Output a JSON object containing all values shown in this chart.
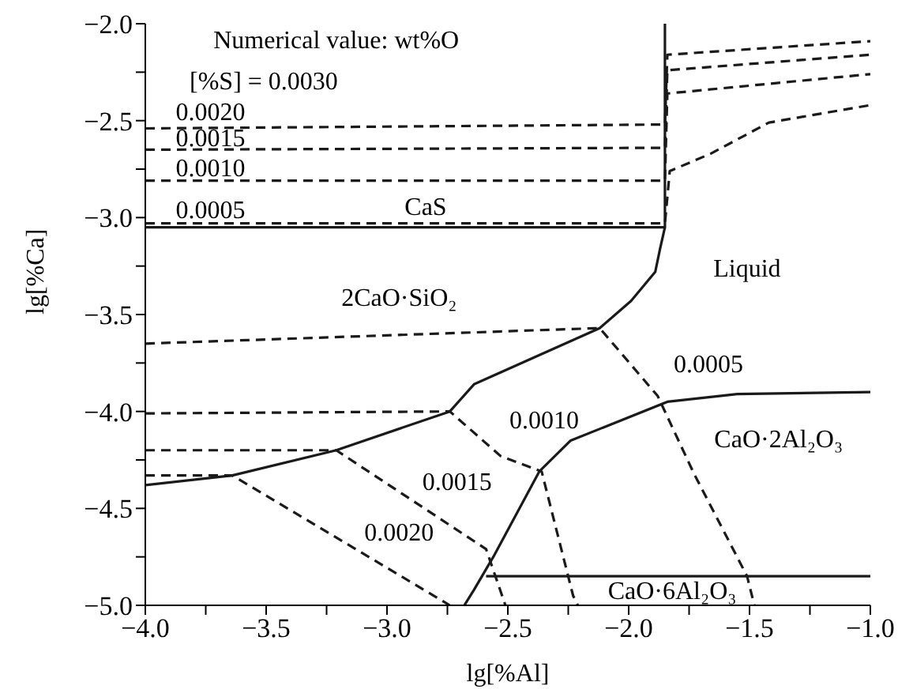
{
  "chart_data": {
    "type": "line",
    "xlabel": "lg[%Al]",
    "ylabel": "lg[%Ca]",
    "xlim": [
      -4.0,
      -1.0
    ],
    "ylim": [
      -5.0,
      -2.0
    ],
    "xticks": [
      {
        "value": -4.0,
        "label": "−4.0"
      },
      {
        "value": -3.75,
        "label": null
      },
      {
        "value": -3.5,
        "label": "−3.5"
      },
      {
        "value": -3.25,
        "label": null
      },
      {
        "value": -3.0,
        "label": "−3.0"
      },
      {
        "value": -2.75,
        "label": null
      },
      {
        "value": -2.5,
        "label": "−2.5"
      },
      {
        "value": -2.25,
        "label": null
      },
      {
        "value": -2.0,
        "label": "−2.0"
      },
      {
        "value": -1.75,
        "label": null
      },
      {
        "value": -1.5,
        "label": "−1.5"
      },
      {
        "value": -1.25,
        "label": null
      },
      {
        "value": -1.0,
        "label": "−1.0"
      }
    ],
    "yticks": [
      {
        "value": -5.0,
        "label": "−5.0"
      },
      {
        "value": -4.75,
        "label": null
      },
      {
        "value": -4.5,
        "label": "−4.5"
      },
      {
        "value": -4.25,
        "label": null
      },
      {
        "value": -4.0,
        "label": "−4.0"
      },
      {
        "value": -3.75,
        "label": null
      },
      {
        "value": -3.5,
        "label": "−3.5"
      },
      {
        "value": -3.25,
        "label": null
      },
      {
        "value": -3.0,
        "label": "−3.0"
      },
      {
        "value": -2.75,
        "label": null
      },
      {
        "value": -2.5,
        "label": "−2.5"
      },
      {
        "value": -2.25,
        "label": null
      },
      {
        "value": -2.0,
        "label": "−2.0"
      }
    ],
    "series": [
      {
        "color": "#1a1a1a",
        "line_style": "solid",
        "x": [
          -4.0,
          -1.85,
          -1.85
        ],
        "values": [
          -3.05,
          -3.05,
          -2.0
        ]
      },
      {
        "color": "#1a1a1a",
        "line_style": "solid",
        "x": [
          -1.85,
          -1.87,
          -1.89,
          -1.99,
          -2.12,
          -2.64,
          -2.74,
          -3.21,
          -3.64,
          -4.0
        ],
        "values": [
          -3.05,
          -3.16,
          -3.28,
          -3.43,
          -3.57,
          -3.86,
          -4.0,
          -4.2,
          -4.33,
          -4.38
        ]
      },
      {
        "color": "#1a1a1a",
        "line_style": "solid",
        "x": [
          -1.0,
          -1.55,
          -1.84,
          -2.24,
          -2.37,
          -2.56,
          -2.64,
          -2.68
        ],
        "values": [
          -3.9,
          -3.91,
          -3.95,
          -4.15,
          -4.31,
          -4.75,
          -4.92,
          -5.0
        ]
      },
      {
        "color": "#1a1a1a",
        "line_style": "solid",
        "x": [
          -2.59,
          -1.0
        ],
        "values": [
          -4.85,
          -4.85
        ]
      },
      {
        "color": "#1a1a1a",
        "line_style": "dashed",
        "x": [
          -4.0,
          -1.85,
          -1.84,
          -1.0
        ],
        "values": [
          -2.54,
          -2.52,
          -2.16,
          -2.09
        ]
      },
      {
        "color": "#1a1a1a",
        "line_style": "dashed",
        "x": [
          -4.0,
          -1.85,
          -1.84,
          -1.0
        ],
        "values": [
          -2.65,
          -2.64,
          -2.24,
          -2.16
        ]
      },
      {
        "color": "#1a1a1a",
        "line_style": "dashed",
        "x": [
          -4.0,
          -1.85,
          -1.84,
          -1.0
        ],
        "values": [
          -2.81,
          -2.81,
          -2.36,
          -2.26
        ]
      },
      {
        "color": "#1a1a1a",
        "line_style": "dashed",
        "x": [
          -4.0,
          -1.85,
          -1.83,
          -1.66,
          -1.42,
          -1.0
        ],
        "values": [
          -3.03,
          -3.03,
          -2.76,
          -2.67,
          -2.51,
          -2.42
        ]
      },
      {
        "color": "#1a1a1a",
        "line_style": "dashed",
        "x": [
          -4.0,
          -2.12,
          -1.88,
          -1.73,
          -1.51,
          -1.48
        ],
        "values": [
          -3.65,
          -3.57,
          -3.92,
          -4.32,
          -4.85,
          -5.0
        ]
      },
      {
        "color": "#1a1a1a",
        "line_style": "dashed",
        "x": [
          -4.0,
          -2.74,
          -2.53,
          -2.36,
          -2.23,
          -2.21
        ],
        "values": [
          -4.01,
          -4.0,
          -4.23,
          -4.31,
          -4.95,
          -5.0
        ]
      },
      {
        "color": "#1a1a1a",
        "line_style": "dashed",
        "x": [
          -4.0,
          -3.21,
          -2.59,
          -2.51
        ],
        "values": [
          -4.2,
          -4.2,
          -4.71,
          -5.0
        ]
      },
      {
        "color": "#1a1a1a",
        "line_style": "dashed",
        "x": [
          -4.0,
          -3.64,
          -2.74
        ],
        "values": [
          -4.33,
          -4.33,
          -5.0
        ]
      }
    ],
    "annotations": [
      "Numerical value: wt%O",
      "[%S] = 0.0030",
      "0.0020",
      "0.0015",
      "0.0010",
      "0.0005",
      "CaS",
      "2CaO·SiO₂",
      "Liquid",
      "0.0005",
      "0.0010",
      "0.0015",
      "0.0020",
      "CaO·2Al₂O₃",
      "CaO·6Al₂O₃"
    ]
  }
}
